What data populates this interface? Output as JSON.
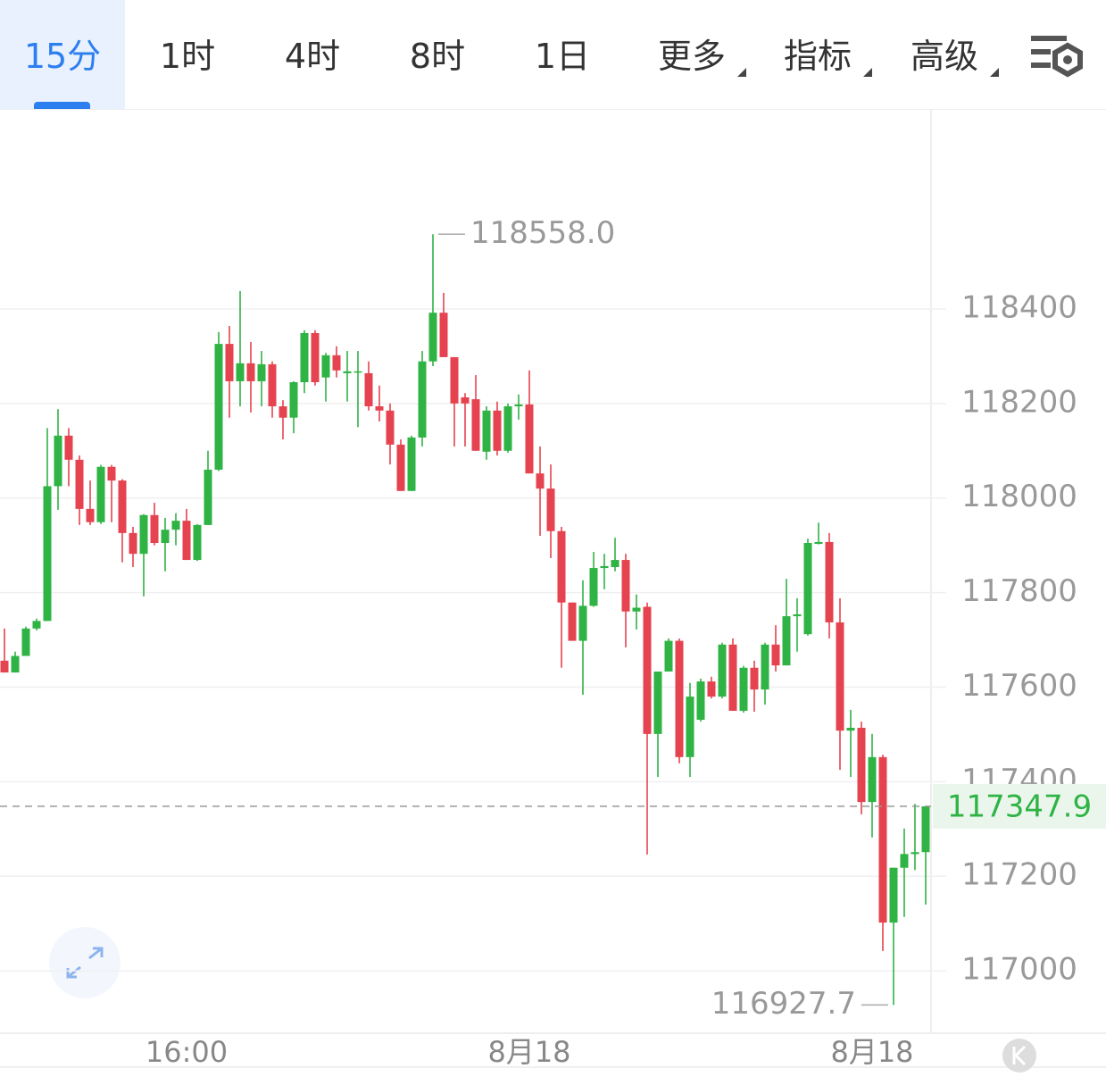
{
  "toolbar": {
    "tabs": [
      "15分",
      "1时",
      "4时",
      "8时",
      "1日",
      "更多",
      "指标",
      "高级"
    ]
  },
  "chart_data": {
    "type": "candlestick",
    "categories": [
      null,
      null,
      null,
      null,
      null,
      null,
      null,
      null,
      null,
      null,
      null,
      null,
      null,
      null,
      null,
      null,
      null,
      "16:00",
      null,
      null,
      null,
      null,
      null,
      null,
      null,
      null,
      null,
      null,
      null,
      null,
      null,
      null,
      null,
      null,
      null,
      null,
      null,
      null,
      null,
      null,
      null,
      null,
      null,
      null,
      null,
      null,
      null,
      null,
      null,
      "8月18",
      null,
      null,
      null,
      null,
      null,
      null,
      null,
      null,
      null,
      null,
      null,
      null,
      null,
      null,
      null,
      null,
      null,
      null,
      null,
      null,
      null,
      null,
      null,
      null,
      null,
      null,
      null,
      null,
      null,
      null,
      null,
      "8月18",
      null,
      null,
      null,
      null,
      null
    ],
    "open": [
      117656,
      117631,
      117666,
      117724,
      117740,
      118025,
      118132,
      118081,
      117977,
      117949,
      118066,
      118037,
      117926,
      117882,
      117964,
      117905,
      117933,
      117952,
      117869,
      117943,
      118060,
      118326,
      118247,
      118285,
      118247,
      118283,
      118194,
      118170,
      118245,
      118349,
      118255,
      118302,
      118264,
      118266,
      118264,
      118194,
      118185,
      118113,
      118015,
      118128,
      118289,
      118392,
      118298,
      118213,
      118209,
      118098,
      118185,
      118100,
      118194,
      118198,
      118052,
      118020,
      117930,
      117779,
      117698,
      117772,
      117852,
      117854,
      117869,
      117760,
      117770,
      117501,
      117633,
      117698,
      117452,
      117531,
      117612,
      117580,
      117690,
      117550,
      117641,
      117595,
      117690,
      117646,
      117750,
      117712,
      117903,
      117907,
      117737,
      117508,
      117514,
      117357,
      117452,
      117102,
      117218,
      117247,
      117251
    ],
    "high": [
      117724,
      117675,
      117728,
      117745,
      118148,
      118188,
      118148,
      118090,
      118037,
      118070,
      118070,
      118040,
      117939,
      117966,
      117990,
      117958,
      117968,
      117977,
      117945,
      118100,
      118351,
      118364,
      118438,
      118330,
      118311,
      118289,
      118207,
      118247,
      118355,
      118355,
      118307,
      118321,
      118311,
      118311,
      118289,
      118238,
      118200,
      118124,
      118132,
      118311,
      118558,
      118434,
      118298,
      118222,
      118260,
      118194,
      118204,
      118200,
      118219,
      118270,
      118109,
      118071,
      117939,
      117779,
      117826,
      117886,
      117882,
      117916,
      117882,
      117796,
      117779,
      117633,
      117703,
      117703,
      117609,
      117618,
      117622,
      117694,
      117703,
      117645,
      117656,
      117694,
      117731,
      117829,
      117788,
      117914,
      117948,
      117926,
      117788,
      117552,
      117527,
      117501,
      117457,
      117218,
      117301,
      117353,
      117347.9
    ],
    "low": [
      117631,
      117631,
      117666,
      117720,
      117740,
      117975,
      118025,
      117943,
      117943,
      117945,
      117949,
      117864,
      117854,
      117792,
      117900,
      117845,
      117900,
      117869,
      117867,
      117943,
      118057,
      118170,
      118194,
      118181,
      118194,
      118170,
      118124,
      118137,
      118222,
      118238,
      118204,
      118255,
      118204,
      118150,
      118185,
      118162,
      118071,
      118015,
      118015,
      118109,
      118279,
      118298,
      118109,
      118109,
      118100,
      118081,
      118090,
      118096,
      118166,
      118052,
      117920,
      117873,
      117641,
      117698,
      117584,
      117770,
      117807,
      117845,
      117684,
      117722,
      117246,
      117410,
      117633,
      117439,
      117410,
      117527,
      117576,
      117576,
      117550,
      117546,
      117548,
      117563,
      117633,
      117646,
      117675,
      117709,
      117902,
      117703,
      117425,
      117410,
      117331,
      117282,
      117042,
      116927.7,
      117114,
      117213,
      117140
    ],
    "close": [
      117631,
      117666,
      117724,
      117740,
      118025,
      118132,
      118081,
      117977,
      117949,
      118066,
      118037,
      117926,
      117882,
      117964,
      117905,
      117933,
      117952,
      117869,
      117943,
      118060,
      118326,
      118247,
      118285,
      118247,
      118283,
      118194,
      118170,
      118245,
      118349,
      118245,
      118302,
      118270,
      118268,
      118268,
      118194,
      118185,
      118113,
      118015,
      118128,
      118289,
      118392,
      118298,
      118200,
      118200,
      118100,
      118185,
      118100,
      118194,
      118198,
      118052,
      118020,
      117930,
      117779,
      117698,
      117772,
      117852,
      117856,
      117869,
      117760,
      117768,
      117501,
      117633,
      117698,
      117452,
      117580,
      117612,
      117580,
      117690,
      117550,
      117641,
      117595,
      117690,
      117646,
      117750,
      117754,
      117905,
      117907,
      117737,
      117508,
      117514,
      117357,
      117452,
      117102,
      117218,
      117247,
      117251,
      117347.9
    ],
    "up_color": "#2fb344",
    "down_color": "#e5434f",
    "ylim": [
      116868,
      118823
    ],
    "yticks": [
      117000,
      117200,
      117400,
      117600,
      117800,
      118000,
      118200,
      118400
    ],
    "grid": true,
    "high_label": {
      "value": 118558,
      "label": "118558.0"
    },
    "low_label": {
      "value": 116927.7,
      "label": "116927.7"
    },
    "last_price": {
      "value": 117347.9,
      "label": "117347.9"
    }
  }
}
